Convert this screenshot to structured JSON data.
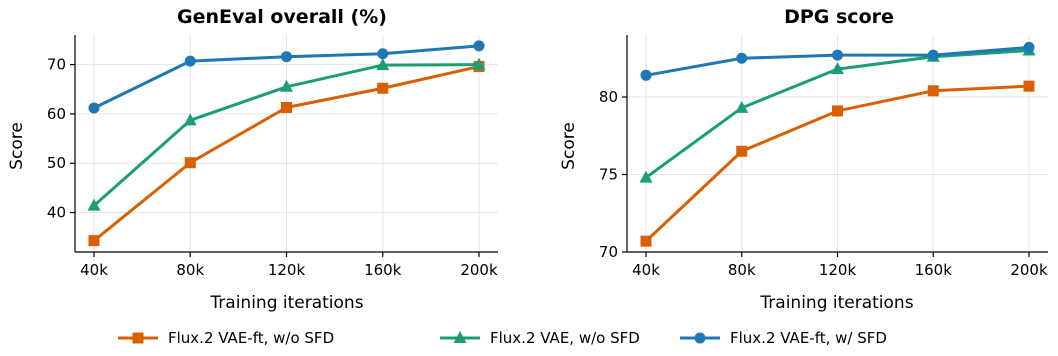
{
  "chart_data": [
    {
      "type": "line",
      "title": "GenEval overall (%)",
      "xlabel": "Training iterations",
      "ylabel": "Score",
      "categories": [
        "40k",
        "80k",
        "120k",
        "160k",
        "200k"
      ],
      "ylim": [
        32,
        76
      ],
      "yticks": [
        40,
        50,
        60,
        70
      ],
      "grid": true,
      "series": [
        {
          "name": "Flux.2 VAE-ft, w/o SFD",
          "color": "#d95f02",
          "marker": "square",
          "values": [
            34.3,
            50.1,
            61.3,
            65.2,
            69.6
          ]
        },
        {
          "name": "Flux.2 VAE, w/o SFD",
          "color": "#1b9e77",
          "marker": "triangle",
          "values": [
            41.4,
            58.7,
            65.5,
            69.9,
            70.0
          ]
        },
        {
          "name": "Flux.2 VAE-ft, w/ SFD",
          "color": "#1f77b4",
          "marker": "circle",
          "values": [
            61.2,
            70.7,
            71.6,
            72.2,
            73.8
          ]
        }
      ]
    },
    {
      "type": "line",
      "title": "DPG score",
      "xlabel": "Training iterations",
      "ylabel": "Score",
      "categories": [
        "40k",
        "80k",
        "120k",
        "160k",
        "200k"
      ],
      "ylim": [
        70,
        84
      ],
      "yticks": [
        70,
        75,
        80
      ],
      "grid": true,
      "series": [
        {
          "name": "Flux.2 VAE-ft, w/o SFD",
          "color": "#d95f02",
          "marker": "square",
          "values": [
            70.7,
            76.5,
            79.1,
            80.4,
            80.7
          ]
        },
        {
          "name": "Flux.2 VAE, w/o SFD",
          "color": "#1b9e77",
          "marker": "triangle",
          "values": [
            74.8,
            79.3,
            81.8,
            82.6,
            83.0
          ]
        },
        {
          "name": "Flux.2 VAE-ft, w/ SFD",
          "color": "#1f77b4",
          "marker": "circle",
          "values": [
            81.4,
            82.5,
            82.7,
            82.7,
            83.2
          ]
        }
      ]
    }
  ],
  "legend": {
    "placement": "bottom-center",
    "items": [
      {
        "label": "Flux.2 VAE-ft, w/o SFD",
        "color": "#d95f02",
        "marker": "square"
      },
      {
        "label": "Flux.2 VAE, w/o SFD",
        "color": "#1b9e77",
        "marker": "triangle"
      },
      {
        "label": "Flux.2 VAE-ft, w/ SFD",
        "color": "#1f77b4",
        "marker": "circle"
      }
    ]
  }
}
